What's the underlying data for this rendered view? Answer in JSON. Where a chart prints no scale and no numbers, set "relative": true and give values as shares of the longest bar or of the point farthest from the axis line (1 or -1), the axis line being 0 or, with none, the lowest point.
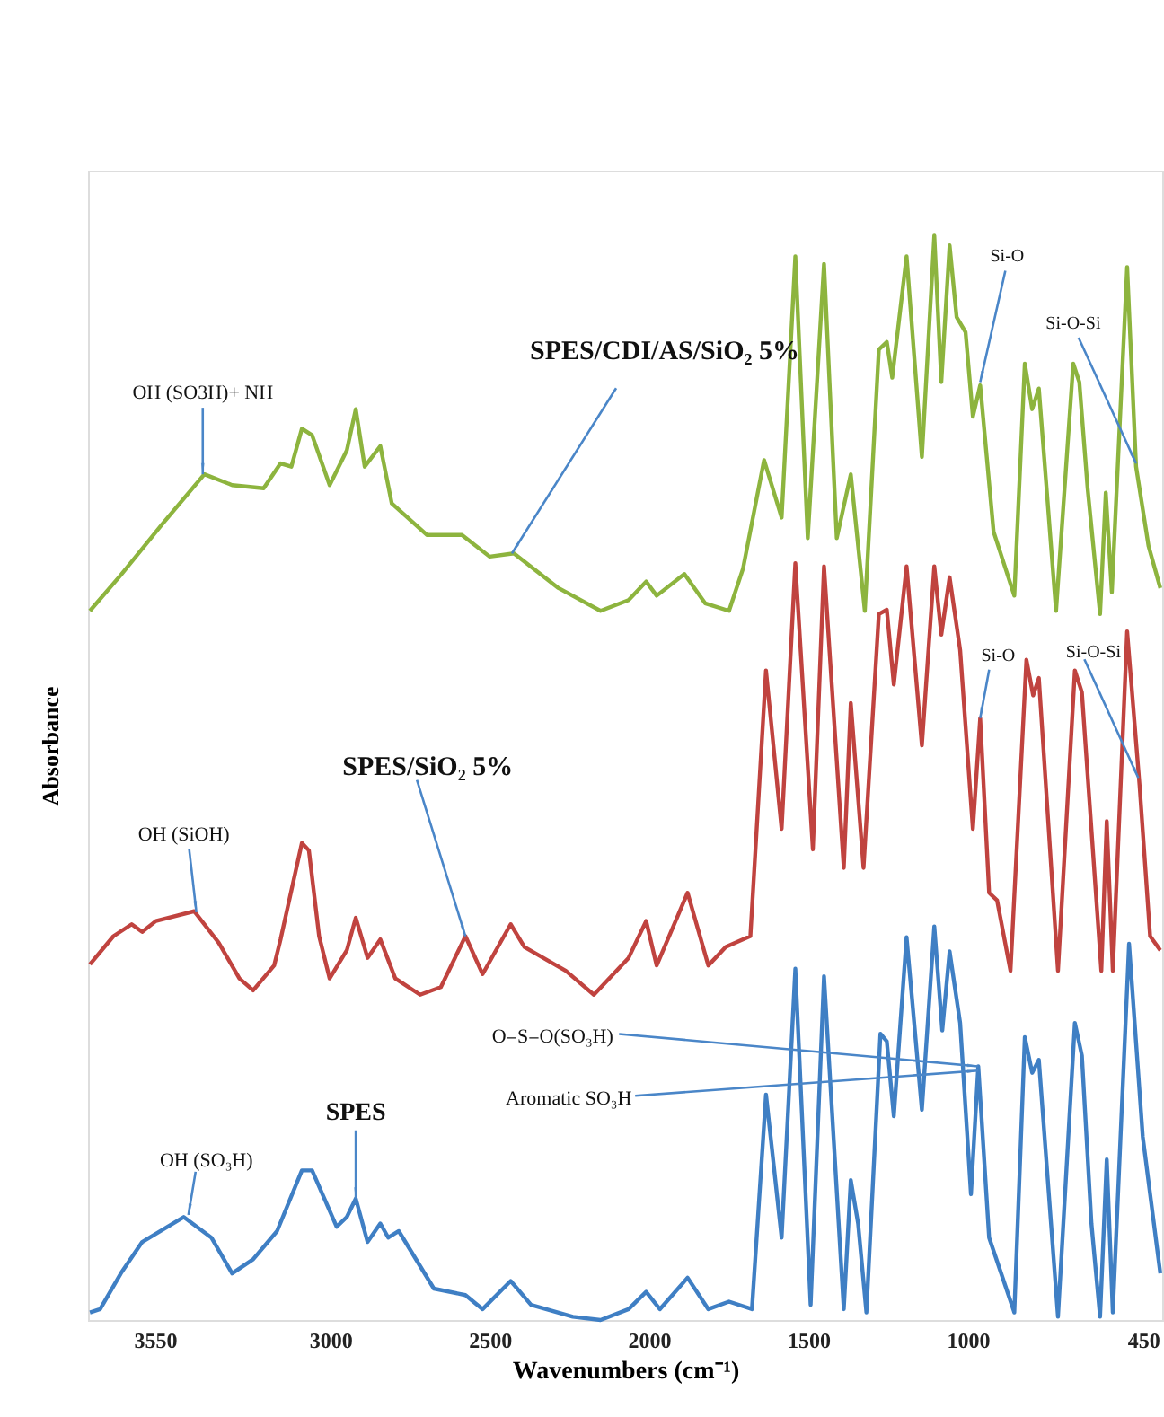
{
  "chart_data": {
    "type": "line",
    "relative": true,
    "xlabel": "Wavenumbers (cm⁻¹)",
    "ylabel": "Absorbance",
    "xlim": [
      3760,
      390
    ],
    "xticks": [
      3550,
      3000,
      2500,
      2000,
      1500,
      1000,
      450
    ],
    "grid": false,
    "legend": false,
    "marker": "none",
    "line_style": "solid",
    "series": [
      {
        "color": "#8db43e",
        "x": [
          3754,
          3657,
          3527,
          3395,
          3308,
          3209,
          3156,
          3122,
          3089,
          3057,
          3002,
          2948,
          2920,
          2892,
          2843,
          2807,
          2697,
          2587,
          2500,
          2424,
          2284,
          2152,
          2064,
          2009,
          1976,
          1889,
          1824,
          1749,
          1705,
          1639,
          1584,
          1541,
          1502,
          1451,
          1411,
          1367,
          1323,
          1279,
          1254,
          1237,
          1192,
          1144,
          1105,
          1083,
          1057,
          1035,
          1007,
          984,
          961,
          919,
          854,
          821,
          798,
          777,
          723,
          669,
          650,
          624,
          585,
          567,
          548,
          500,
          472,
          433,
          396
        ],
        "values": [
          0.654,
          0.687,
          0.734,
          0.78,
          0.77,
          0.767,
          0.79,
          0.787,
          0.822,
          0.816,
          0.77,
          0.802,
          0.84,
          0.787,
          0.806,
          0.753,
          0.724,
          0.724,
          0.704,
          0.707,
          0.675,
          0.654,
          0.664,
          0.681,
          0.668,
          0.688,
          0.661,
          0.654,
          0.693,
          0.793,
          0.74,
          0.981,
          0.721,
          0.974,
          0.721,
          0.78,
          0.654,
          0.895,
          0.902,
          0.869,
          0.981,
          0.796,
          1.0,
          0.865,
          0.991,
          0.925,
          0.911,
          0.833,
          0.862,
          0.727,
          0.668,
          0.882,
          0.84,
          0.859,
          0.654,
          0.882,
          0.865,
          0.767,
          0.651,
          0.763,
          0.671,
          0.971,
          0.787,
          0.714,
          0.675
        ]
      },
      {
        "color": "#c0433f",
        "x": [
          3754,
          3680,
          3623,
          3590,
          3547,
          3427,
          3350,
          3285,
          3242,
          3176,
          3156,
          3089,
          3067,
          3035,
          3002,
          2948,
          2920,
          2883,
          2843,
          2796,
          2718,
          2653,
          2576,
          2522,
          2434,
          2391,
          2261,
          2173,
          2064,
          2009,
          1976,
          1879,
          1814,
          1759,
          1682,
          1633,
          1584,
          1541,
          1486,
          1451,
          1389,
          1367,
          1327,
          1279,
          1254,
          1232,
          1192,
          1144,
          1105,
          1083,
          1057,
          1024,
          984,
          961,
          933,
          908,
          866,
          816,
          795,
          777,
          717,
          664,
          642,
          620,
          581,
          564,
          545,
          500,
          461,
          428,
          396
        ],
        "values": [
          0.328,
          0.354,
          0.365,
          0.358,
          0.368,
          0.377,
          0.348,
          0.315,
          0.304,
          0.327,
          0.351,
          0.44,
          0.433,
          0.354,
          0.315,
          0.341,
          0.371,
          0.334,
          0.351,
          0.315,
          0.3,
          0.307,
          0.354,
          0.319,
          0.365,
          0.344,
          0.322,
          0.3,
          0.334,
          0.368,
          0.327,
          0.394,
          0.327,
          0.344,
          0.354,
          0.599,
          0.453,
          0.698,
          0.434,
          0.695,
          0.417,
          0.569,
          0.417,
          0.651,
          0.655,
          0.586,
          0.695,
          0.53,
          0.695,
          0.632,
          0.685,
          0.618,
          0.453,
          0.555,
          0.394,
          0.387,
          0.322,
          0.609,
          0.576,
          0.592,
          0.322,
          0.599,
          0.579,
          0.486,
          0.322,
          0.46,
          0.322,
          0.635,
          0.493,
          0.354,
          0.341
        ]
      },
      {
        "color": "#3f7fc4",
        "x": [
          3754,
          3722,
          3657,
          3590,
          3460,
          3373,
          3308,
          3242,
          3167,
          3089,
          3057,
          2980,
          2948,
          2920,
          2883,
          2843,
          2818,
          2785,
          2675,
          2576,
          2522,
          2434,
          2370,
          2239,
          2152,
          2064,
          2009,
          1966,
          1879,
          1814,
          1749,
          1677,
          1633,
          1584,
          1541,
          1493,
          1451,
          1389,
          1367,
          1344,
          1318,
          1274,
          1254,
          1232,
          1192,
          1144,
          1105,
          1080,
          1057,
          1024,
          990,
          967,
          933,
          854,
          821,
          798,
          777,
          717,
          664,
          642,
          612,
          585,
          564,
          545,
          494,
          451,
          396
        ],
        "values": [
          0.007,
          0.01,
          0.043,
          0.072,
          0.095,
          0.076,
          0.043,
          0.056,
          0.082,
          0.138,
          0.138,
          0.086,
          0.095,
          0.112,
          0.072,
          0.089,
          0.076,
          0.082,
          0.029,
          0.023,
          0.01,
          0.036,
          0.014,
          0.003,
          0.0,
          0.01,
          0.026,
          0.01,
          0.039,
          0.01,
          0.017,
          0.01,
          0.208,
          0.076,
          0.324,
          0.014,
          0.317,
          0.01,
          0.129,
          0.089,
          0.007,
          0.264,
          0.257,
          0.188,
          0.353,
          0.194,
          0.363,
          0.267,
          0.34,
          0.274,
          0.116,
          0.234,
          0.076,
          0.007,
          0.261,
          0.228,
          0.24,
          0.003,
          0.274,
          0.244,
          0.089,
          0.003,
          0.148,
          0.007,
          0.347,
          0.169,
          0.043
        ]
      }
    ],
    "annotations": [
      {
        "text": "OH (SO3H)+ NH",
        "x": 3400,
        "y": 0.78
      },
      {
        "text": "SPES/CDI/AS/SiO₂ 5%",
        "x": 2430,
        "y": 0.707
      },
      {
        "text": "Si-O",
        "x": 961,
        "y": 0.865
      },
      {
        "text": "Si-O-Si",
        "x": 472,
        "y": 0.79
      },
      {
        "text": "SPES/SiO₂ 5%",
        "x": 2576,
        "y": 0.354
      },
      {
        "text": "OH (SiOH)",
        "x": 3420,
        "y": 0.376
      },
      {
        "text": "Si-O",
        "x": 961,
        "y": 0.555
      },
      {
        "text": "Si-O-Si",
        "x": 465,
        "y": 0.5
      },
      {
        "text": "O=S=O(SO₃H)",
        "x": 967,
        "y": 0.234
      },
      {
        "text": "Aromatic SO₃H",
        "x": 967,
        "y": 0.23
      },
      {
        "text": "SPES",
        "x": 2920,
        "y": 0.112
      },
      {
        "text": "OH (SO₃H)",
        "x": 3445,
        "y": 0.097
      }
    ]
  }
}
